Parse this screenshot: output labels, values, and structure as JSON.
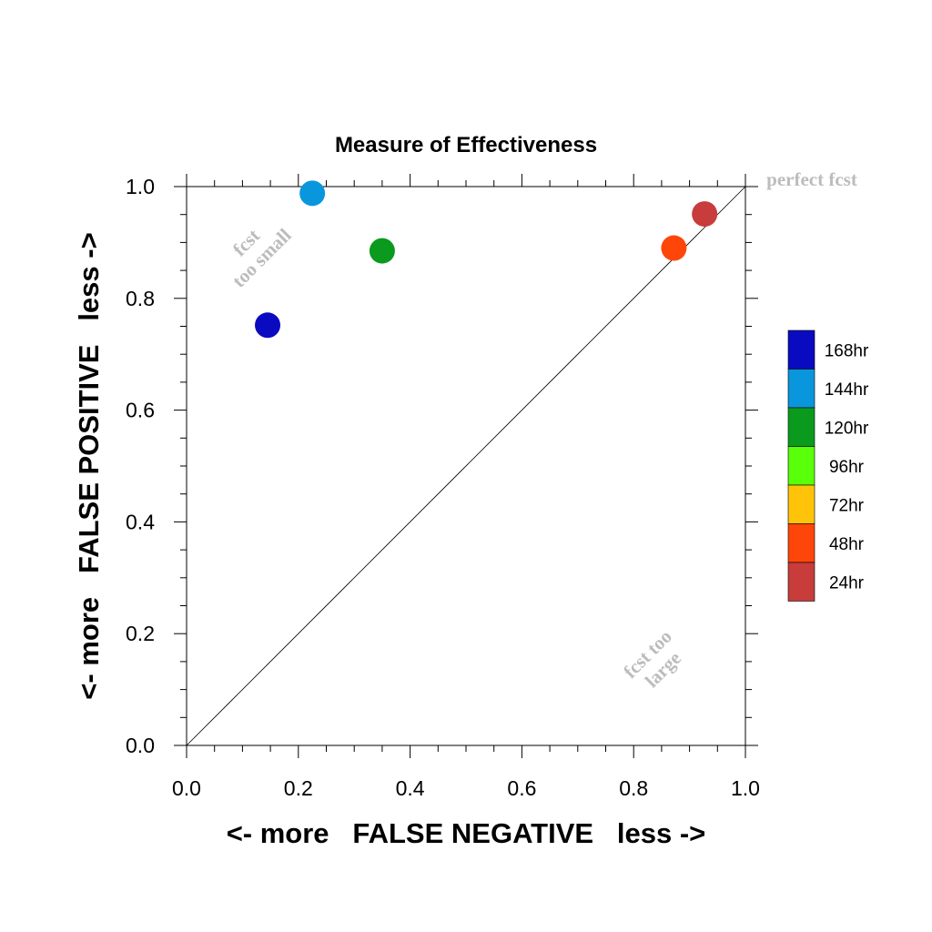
{
  "chart_data": {
    "type": "scatter",
    "title": "Measure of Effectiveness",
    "xlabel": "<- more   FALSE NEGATIVE   less ->",
    "ylabel": "<- more   FALSE POSITIVE   less ->",
    "xlim": [
      0.0,
      1.0
    ],
    "ylim": [
      0.0,
      1.0
    ],
    "xticks": [
      "0.0",
      "0.2",
      "0.4",
      "0.6",
      "0.8",
      "1.0"
    ],
    "yticks": [
      "0.0",
      "0.2",
      "0.4",
      "0.6",
      "0.8",
      "1.0"
    ],
    "grid": false,
    "diagonal_reference_line": true,
    "annotations": {
      "top_right": "perfect fcst",
      "upper_left_line1": "fcst",
      "upper_left_line2": "too small",
      "lower_right_line1": "fcst too",
      "lower_right_line2": "large"
    },
    "legend": {
      "placement": "right",
      "entries": [
        {
          "label": "168hr",
          "color": "#0a0ac0"
        },
        {
          "label": "144hr",
          "color": "#0a96dc"
        },
        {
          "label": "120hr",
          "color": "#0a9a1e"
        },
        {
          "label": "96hr",
          "color": "#5aff0a"
        },
        {
          "label": "72hr",
          "color": "#ffc40a"
        },
        {
          "label": "48hr",
          "color": "#ff460a"
        },
        {
          "label": "24hr",
          "color": "#c83c3c"
        }
      ]
    },
    "points": [
      {
        "label": "168hr",
        "x": 0.145,
        "y": 0.752,
        "color": "#0a0ac0"
      },
      {
        "label": "144hr",
        "x": 0.225,
        "y": 0.988,
        "color": "#0a96dc"
      },
      {
        "label": "120hr",
        "x": 0.35,
        "y": 0.885,
        "color": "#0a9a1e"
      },
      {
        "label": "48hr",
        "x": 0.872,
        "y": 0.89,
        "color": "#ff460a"
      },
      {
        "label": "24hr",
        "x": 0.927,
        "y": 0.951,
        "color": "#c83c3c"
      }
    ]
  }
}
